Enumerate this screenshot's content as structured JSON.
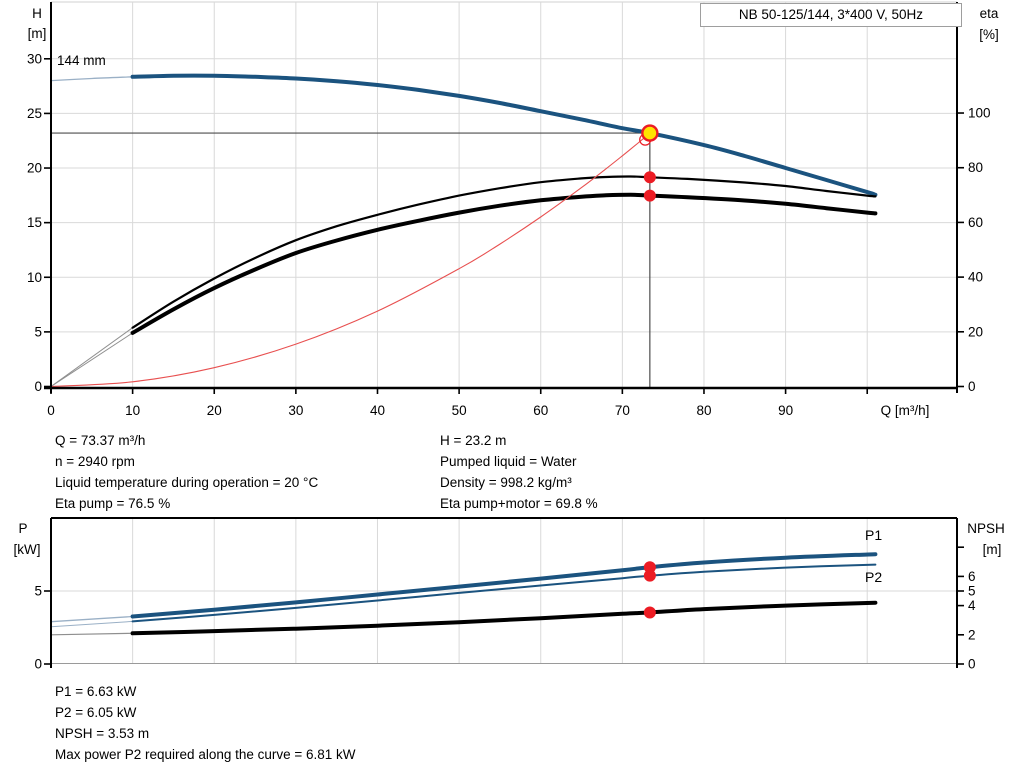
{
  "title_box": "NB 50-125/144, 3*400 V, 50Hz",
  "colors": {
    "grid": "#d9d9d9",
    "axis": "#000000",
    "duty_line": "#4d4d4d",
    "marker_red": "#ec1c24",
    "marker_yellow": "#ffe400",
    "curve_blue": "#1b537f",
    "label_blue": "#1f4e79"
  },
  "details": {
    "left": [
      "Q = 73.37 m³/h",
      "n = 2940 rpm",
      "Liquid temperature during operation = 20 °C",
      "Eta pump = 76.5 %"
    ],
    "right": [
      "H = 23.2 m",
      "Pumped liquid = Water",
      "Density = 998.2 kg/m³",
      "Eta pump+motor = 69.8 %"
    ]
  },
  "results": [
    "P1 = 6.63 kW",
    "P2 = 6.05 kW",
    "NPSH = 3.53 m",
    "Max power P2 required along the curve = 6.81 kW"
  ],
  "chart_data": [
    {
      "type": "line",
      "name": "head-efficiency",
      "title": "NB 50-125/144, 3*400 V, 50Hz",
      "x_axis": {
        "label": "Q [m³/h]",
        "range": [
          0,
          111
        ],
        "tick_step": 10,
        "labeled_ticks": [
          0,
          10,
          20,
          30,
          40,
          50,
          60,
          70,
          80,
          90
        ],
        "grid_max": 100
      },
      "left_axis": {
        "label_lines": [
          "H",
          "[m]"
        ],
        "range": [
          0,
          35.2
        ],
        "ticks": [
          0,
          5,
          10,
          15,
          20,
          25,
          30
        ]
      },
      "right_axis": {
        "label_lines": [
          "eta",
          "[%]"
        ],
        "range": [
          0,
          140.6
        ],
        "ticks": [
          0,
          20,
          40,
          60,
          80,
          100
        ]
      },
      "curve_label": {
        "text": "144 mm",
        "color": "#1e3a5f"
      },
      "duty_point": {
        "q": 73.37,
        "h": 23.2,
        "eta_pump": 76.5,
        "eta_pump_motor": 69.8
      },
      "intersection_marker": {
        "q": 72.8,
        "h": 22.6
      },
      "series": [
        {
          "name": "head-curve-144mm",
          "label": "144 mm",
          "axis": "left",
          "color": "#1b537f",
          "thin_color": "#9ab0c6",
          "width": 4,
          "thin_width": 1.3,
          "thin_until": 10,
          "points": [
            [
              0,
              28.0
            ],
            [
              5,
              28.2
            ],
            [
              10,
              28.35
            ],
            [
              15,
              28.45
            ],
            [
              20,
              28.45
            ],
            [
              25,
              28.35
            ],
            [
              30,
              28.2
            ],
            [
              35,
              27.95
            ],
            [
              40,
              27.6
            ],
            [
              45,
              27.15
            ],
            [
              50,
              26.6
            ],
            [
              55,
              25.95
            ],
            [
              60,
              25.2
            ],
            [
              65,
              24.45
            ],
            [
              70,
              23.65
            ],
            [
              73.37,
              23.2
            ],
            [
              80,
              22.1
            ],
            [
              85,
              21.1
            ],
            [
              90,
              20.0
            ],
            [
              95,
              18.9
            ],
            [
              100,
              17.8
            ],
            [
              101,
              17.55
            ]
          ]
        },
        {
          "name": "eta-pump-curve",
          "axis": "right",
          "color": "#000000",
          "thin_color": "#8f8f8f",
          "width": 2.2,
          "thin_width": 1,
          "thin_until": 10,
          "points": [
            [
              0,
              0
            ],
            [
              10,
              21.5
            ],
            [
              15,
              31
            ],
            [
              20,
              39.5
            ],
            [
              25,
              47
            ],
            [
              30,
              53.5
            ],
            [
              35,
              58.6
            ],
            [
              40,
              62.8
            ],
            [
              45,
              66.5
            ],
            [
              50,
              69.8
            ],
            [
              55,
              72.5
            ],
            [
              60,
              74.7
            ],
            [
              65,
              76.1
            ],
            [
              68,
              76.6
            ],
            [
              71,
              76.8
            ],
            [
              73.37,
              76.5
            ],
            [
              78,
              75.9
            ],
            [
              85,
              74.6
            ],
            [
              90,
              73.3
            ],
            [
              95,
              71.5
            ],
            [
              100,
              69.8
            ],
            [
              101,
              69.5
            ]
          ]
        },
        {
          "name": "eta-pump-motor-curve",
          "axis": "right",
          "color": "#000000",
          "thin_color": "#8f8f8f",
          "width": 4,
          "thin_width": 1,
          "thin_until": 10,
          "points": [
            [
              0,
              0
            ],
            [
              10,
              19.6
            ],
            [
              15,
              28.2
            ],
            [
              20,
              36.0
            ],
            [
              25,
              42.8
            ],
            [
              30,
              48.8
            ],
            [
              35,
              53.4
            ],
            [
              40,
              57.3
            ],
            [
              45,
              60.6
            ],
            [
              50,
              63.6
            ],
            [
              55,
              66.1
            ],
            [
              60,
              68.1
            ],
            [
              65,
              69.4
            ],
            [
              68,
              69.9
            ],
            [
              71,
              70.1
            ],
            [
              73.37,
              69.8
            ],
            [
              78,
              69.2
            ],
            [
              85,
              68.0
            ],
            [
              90,
              66.8
            ],
            [
              95,
              65.2
            ],
            [
              100,
              63.6
            ],
            [
              101,
              63.3
            ]
          ]
        },
        {
          "name": "system-curve",
          "axis": "left",
          "color": "#e85050",
          "width": 1.1,
          "points": [
            [
              0,
              0
            ],
            [
              10,
              0.43
            ],
            [
              20,
              1.72
            ],
            [
              30,
              3.88
            ],
            [
              40,
              6.9
            ],
            [
              50,
              10.78
            ],
            [
              55,
              13.04
            ],
            [
              60,
              15.52
            ],
            [
              65,
              18.21
            ],
            [
              68,
              19.93
            ],
            [
              70,
              21.12
            ],
            [
              72,
              22.34
            ],
            [
              73.37,
              23.2
            ]
          ]
        }
      ]
    },
    {
      "type": "line",
      "name": "power-npsh",
      "x_axis": {
        "range": [
          0,
          111
        ],
        "tick_step": 10,
        "grid_max": 100
      },
      "left_axis": {
        "label_lines": [
          "P",
          "[kW]"
        ],
        "range": [
          0,
          10
        ],
        "ticks": [
          0,
          5
        ],
        "grid_values": [
          5
        ]
      },
      "right_axis": {
        "label_lines": [
          "NPSH",
          "[m]"
        ],
        "range": [
          0,
          10
        ],
        "ticks": [
          0,
          2,
          4,
          5,
          6
        ],
        "unlabeled_ticks": [
          8
        ]
      },
      "duty_markers": [
        {
          "q": 73.37,
          "value": 6.63,
          "axis": "left",
          "name": "p1-duty-point"
        },
        {
          "q": 73.37,
          "value": 6.05,
          "axis": "left",
          "name": "p2-duty-point"
        },
        {
          "q": 73.37,
          "value": 3.53,
          "axis": "right",
          "name": "npsh-duty-point"
        }
      ],
      "series": [
        {
          "name": "p1-curve",
          "label": "P1",
          "axis": "left",
          "color": "#1b537f",
          "thin_color": "#9ab0c6",
          "width": 4,
          "thin_width": 1.3,
          "thin_until": 10,
          "points": [
            [
              0,
              2.9
            ],
            [
              10,
              3.25
            ],
            [
              20,
              3.72
            ],
            [
              30,
              4.22
            ],
            [
              40,
              4.76
            ],
            [
              50,
              5.3
            ],
            [
              60,
              5.85
            ],
            [
              70,
              6.42
            ],
            [
              73.37,
              6.63
            ],
            [
              80,
              6.95
            ],
            [
              90,
              7.28
            ],
            [
              101,
              7.52
            ]
          ]
        },
        {
          "name": "p2-curve",
          "label": "P2",
          "axis": "left",
          "color": "#1b537f",
          "thin_color": "#9ab0c6",
          "width": 2,
          "thin_width": 1,
          "thin_until": 10,
          "points": [
            [
              0,
              2.55
            ],
            [
              10,
              2.92
            ],
            [
              20,
              3.36
            ],
            [
              30,
              3.84
            ],
            [
              40,
              4.35
            ],
            [
              50,
              4.87
            ],
            [
              60,
              5.38
            ],
            [
              70,
              5.88
            ],
            [
              73.37,
              6.05
            ],
            [
              80,
              6.32
            ],
            [
              90,
              6.6
            ],
            [
              101,
              6.81
            ]
          ]
        },
        {
          "name": "npsh-curve",
          "axis": "right",
          "color": "#000000",
          "thin_color": "#8f8f8f",
          "width": 4,
          "thin_width": 1.2,
          "thin_until": 10,
          "points": [
            [
              0,
              2.0
            ],
            [
              10,
              2.1
            ],
            [
              20,
              2.25
            ],
            [
              30,
              2.42
            ],
            [
              40,
              2.62
            ],
            [
              50,
              2.86
            ],
            [
              60,
              3.14
            ],
            [
              70,
              3.44
            ],
            [
              73.37,
              3.53
            ],
            [
              80,
              3.76
            ],
            [
              90,
              4.0
            ],
            [
              101,
              4.2
            ]
          ]
        }
      ]
    }
  ]
}
